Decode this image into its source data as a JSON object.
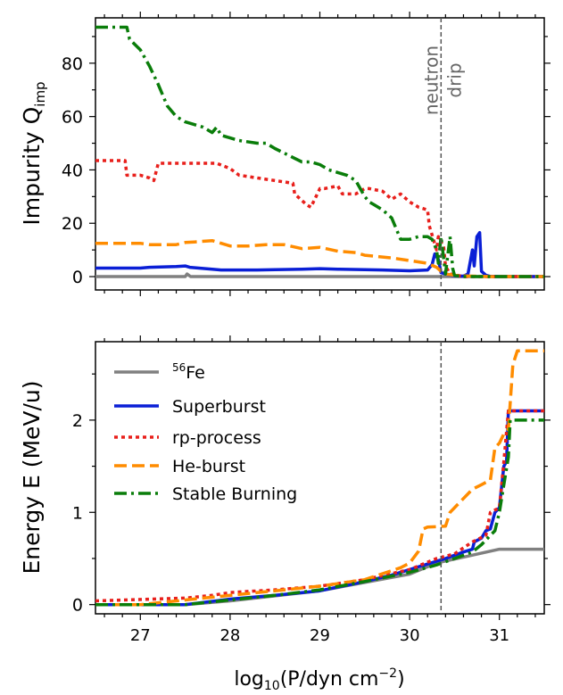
{
  "chart_data": [
    {
      "type": "line",
      "panel": "top",
      "ylabel": "Impurity  Q",
      "ylabel_sub": "imp",
      "xlim": [
        26.5,
        31.5
      ],
      "ylim": [
        -5,
        97
      ],
      "yticks": [
        0,
        20,
        40,
        60,
        80
      ],
      "annotation": {
        "line1": "neutron",
        "line2": "drip",
        "x": 30.35
      },
      "series": [
        {
          "name": "56Fe",
          "color": "#808080",
          "dash": "solid",
          "x": [
            26.5,
            27.5,
            27.52,
            27.56,
            30.25,
            30.3,
            31.5
          ],
          "y": [
            0,
            0,
            1,
            0,
            0,
            0,
            0
          ]
        },
        {
          "name": "Superburst",
          "color": "#0a1fd6",
          "dash": "solid",
          "x": [
            26.5,
            27.0,
            27.1,
            27.4,
            27.5,
            27.55,
            27.8,
            27.9,
            28.1,
            28.3,
            28.5,
            28.8,
            29.0,
            29.2,
            29.5,
            29.7,
            30.0,
            30.2,
            30.25,
            30.28,
            30.32,
            30.35,
            30.4,
            30.5,
            30.6,
            30.65,
            30.7,
            30.72,
            30.75,
            30.78,
            30.8,
            30.85,
            30.9,
            31.0,
            31.5
          ],
          "y": [
            3.2,
            3.2,
            3.5,
            3.8,
            4,
            3.5,
            2.8,
            2.5,
            2.5,
            2.5,
            2.6,
            2.8,
            3.0,
            2.8,
            2.6,
            2.5,
            2.2,
            2.5,
            4.5,
            8.5,
            6.5,
            1.5,
            1.0,
            0.3,
            0.2,
            1,
            10,
            4,
            15,
            16.5,
            2,
            0.5,
            0.1,
            0,
            0
          ]
        },
        {
          "name": "rp-process",
          "color": "#e8201c",
          "dash": "dot",
          "x": [
            26.5,
            26.83,
            26.85,
            27.0,
            27.1,
            27.15,
            27.2,
            27.25,
            27.5,
            27.85,
            28.0,
            28.1,
            28.7,
            28.72,
            28.85,
            28.9,
            29.0,
            29.05,
            29.2,
            29.25,
            29.4,
            29.5,
            29.55,
            29.7,
            29.8,
            29.9,
            30.0,
            30.1,
            30.2,
            30.22,
            30.3,
            30.32,
            30.38,
            30.4,
            30.45,
            30.6,
            31.5
          ],
          "y": [
            43.5,
            43.5,
            38,
            38,
            37,
            36,
            42.5,
            42.5,
            42.5,
            42.5,
            40.5,
            38,
            35,
            31,
            27,
            26,
            33,
            33,
            34,
            31,
            31,
            33,
            33,
            32,
            29,
            31,
            28,
            26,
            25,
            19,
            10,
            15,
            11,
            4,
            1,
            0,
            0
          ]
        },
        {
          "name": "He-burst",
          "color": "#ff8c00",
          "dash": "dash",
          "x": [
            26.5,
            27.0,
            27.1,
            27.4,
            27.5,
            27.6,
            27.8,
            28.0,
            28.2,
            28.4,
            28.6,
            28.8,
            29.0,
            29.2,
            29.4,
            29.5,
            29.8,
            30.0,
            30.2,
            30.3,
            30.35,
            30.4,
            30.5,
            30.6,
            30.7,
            30.8,
            30.9,
            31.0,
            31.5
          ],
          "y": [
            12.5,
            12.5,
            12,
            12,
            12.8,
            13,
            13.5,
            11.5,
            11.5,
            12,
            12,
            10.5,
            11,
            9.5,
            9,
            8,
            7,
            6,
            5,
            3.5,
            2,
            1,
            0.5,
            0.3,
            0.2,
            0.1,
            0,
            0,
            0
          ]
        },
        {
          "name": "Stable Burning",
          "color": "#0a7d0a",
          "dash": "dashdot",
          "x": [
            26.5,
            26.85,
            26.88,
            27.0,
            27.1,
            27.2,
            27.3,
            27.4,
            27.5,
            27.6,
            27.7,
            27.8,
            27.85,
            27.9,
            28.0,
            28.1,
            28.3,
            28.4,
            28.5,
            28.8,
            28.9,
            29.0,
            29.1,
            29.2,
            29.3,
            29.4,
            29.5,
            29.55,
            29.6,
            29.7,
            29.8,
            29.9,
            30.0,
            30.1,
            30.2,
            30.25,
            30.3,
            30.32,
            30.35,
            30.4,
            30.45,
            30.48,
            30.5,
            30.55,
            30.6,
            31.5
          ],
          "y": [
            93.5,
            93.5,
            89,
            85,
            79,
            72,
            64,
            60,
            58,
            57,
            56,
            54,
            56,
            53,
            52,
            51,
            50,
            50,
            48,
            43,
            43,
            42,
            40,
            39,
            38,
            36,
            30,
            28,
            27,
            25,
            22,
            14,
            14,
            15,
            15,
            14,
            10,
            5,
            15,
            1,
            15,
            3,
            0.5,
            0.2,
            0,
            0
          ]
        }
      ]
    },
    {
      "type": "line",
      "panel": "bottom",
      "xlabel": "log10(P/dyn cm^-2)",
      "xlabel_parts": {
        "pre": "log",
        "sub": "10",
        "mid": "(P/dyn cm",
        "sup": "−2",
        "post": ")"
      },
      "ylabel": "Energy  E  (MeV/u)",
      "xlim": [
        26.5,
        31.5
      ],
      "ylim": [
        -0.1,
        2.85
      ],
      "xticks": [
        27,
        28,
        29,
        30,
        31
      ],
      "yticks": [
        0,
        1,
        2
      ],
      "vline_x": 30.35,
      "legend": {
        "placement": "upper-left"
      },
      "series": [
        {
          "name": "56Fe",
          "color": "#808080",
          "dash": "solid",
          "x": [
            26.5,
            27.5,
            28.0,
            29.0,
            30.0,
            30.3,
            31.0,
            31.5
          ],
          "y": [
            0,
            0,
            0.04,
            0.15,
            0.33,
            0.45,
            0.6,
            0.6
          ]
        },
        {
          "name": "Superburst",
          "color": "#0a1fd6",
          "dash": "solid",
          "x": [
            26.5,
            27.5,
            28.0,
            28.5,
            29.0,
            29.5,
            29.8,
            30.0,
            30.2,
            30.4,
            30.6,
            30.7,
            30.72,
            30.8,
            30.85,
            30.9,
            30.95,
            31.0,
            31.05,
            31.08,
            31.1,
            31.5
          ],
          "y": [
            0,
            0,
            0.06,
            0.1,
            0.15,
            0.25,
            0.32,
            0.38,
            0.44,
            0.5,
            0.57,
            0.6,
            0.68,
            0.72,
            0.8,
            0.82,
            1.0,
            1.05,
            1.5,
            1.55,
            2.1,
            2.1
          ]
        },
        {
          "name": "rp-process",
          "color": "#e8201c",
          "dash": "dot",
          "x": [
            26.5,
            27.5,
            27.8,
            28.0,
            28.5,
            29.0,
            29.5,
            30.0,
            30.3,
            30.5,
            30.7,
            30.85,
            30.9,
            31.0,
            31.05,
            31.1,
            31.5
          ],
          "y": [
            0.04,
            0.07,
            0.1,
            0.13,
            0.16,
            0.2,
            0.27,
            0.38,
            0.5,
            0.55,
            0.68,
            0.75,
            1.0,
            1.05,
            1.55,
            2.1,
            2.1
          ]
        },
        {
          "name": "He-burst",
          "color": "#ff8c00",
          "dash": "dash",
          "x": [
            26.5,
            27.0,
            27.5,
            28.0,
            28.5,
            29.0,
            29.5,
            29.9,
            30.0,
            30.1,
            30.15,
            30.2,
            30.4,
            30.45,
            30.55,
            30.7,
            30.8,
            30.9,
            30.95,
            31.0,
            31.05,
            31.1,
            31.15,
            31.2,
            31.5
          ],
          "y": [
            0,
            0,
            0.05,
            0.1,
            0.15,
            0.2,
            0.27,
            0.4,
            0.45,
            0.58,
            0.82,
            0.84,
            0.85,
            1.0,
            1.1,
            1.25,
            1.3,
            1.35,
            1.7,
            1.75,
            1.85,
            1.9,
            2.6,
            2.75,
            2.75
          ]
        },
        {
          "name": "Stable Burning",
          "color": "#0a7d0a",
          "dash": "dashdot",
          "x": [
            26.5,
            27.5,
            28.0,
            28.5,
            29.0,
            29.5,
            30.0,
            30.3,
            30.5,
            30.7,
            30.8,
            30.9,
            30.95,
            31.0,
            31.05,
            31.1,
            31.12,
            31.5
          ],
          "y": [
            0,
            0,
            0.05,
            0.1,
            0.16,
            0.25,
            0.35,
            0.43,
            0.5,
            0.57,
            0.65,
            0.75,
            0.8,
            1.0,
            1.3,
            1.6,
            2.0,
            2.0
          ]
        }
      ]
    }
  ],
  "legend_labels": [
    "56Fe",
    "Superburst",
    "rp-process",
    "He-burst",
    "Stable Burning"
  ],
  "legend_sup": "56",
  "legend_fe": "Fe"
}
